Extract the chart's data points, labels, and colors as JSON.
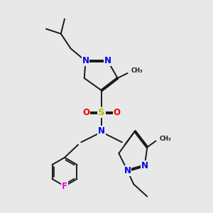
{
  "background_color": "#e8e8e8",
  "bond_color": "#1a1a1a",
  "bond_width": 1.4,
  "atom_colors": {
    "N": "#0000ee",
    "S": "#bbbb00",
    "O": "#ee0000",
    "F": "#ee00ee",
    "C": "#1a1a1a"
  },
  "fs": 8.5
}
